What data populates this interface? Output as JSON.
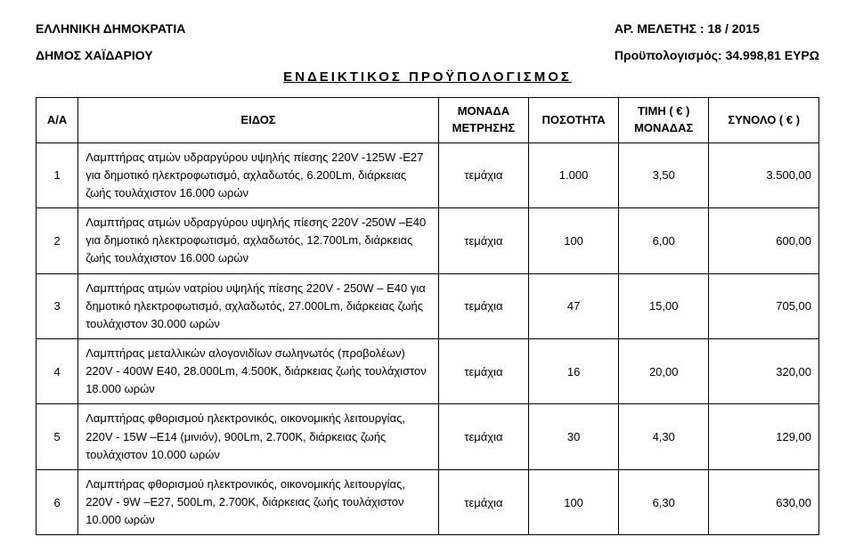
{
  "header": {
    "left1": "ΕΛΛΗΝΙΚΗ ΔΗΜΟΚΡΑΤΙΑ",
    "left2": "ΔΗΜΟΣ ΧΑΪΔΑΡΙΟΥ",
    "right1": "ΑΡ. ΜΕΛΕΤΗΣ : 18 / 2015",
    "right2": "Προϋπολογισμός: 34.998,81 ΕΥΡΩ"
  },
  "title": "ΕΝΔΕΙΚΤΙΚΟΣ ΠΡΟΫΠΟΛΟΓΙΣΜΟΣ",
  "columns": {
    "aa": "Α/Α",
    "eidos": "ΕΙΔΟΣ",
    "monada_l1": "ΜΟΝΑΔΑ",
    "monada_l2": "ΜΕΤΡΗΣΗΣ",
    "posotita": "ΠΟΣΟΤΗΤΑ",
    "timi_l1": "ΤΙΜΗ    ( € )",
    "timi_l2": "ΜΟΝΑΔΑΣ",
    "synolo": "ΣΥΝΟΛΟ ( € )"
  },
  "rows": [
    {
      "aa": "1",
      "desc": "Λαμπτήρας ατμών υδραργύρου υψηλής πίεσης 220V -125W -Ε27 για δημοτικό ηλεκτροφωτισμό, αχλαδωτός, 6.200Lm, διάρκειας ζωής τουλάχιστον 16.000 ωρών",
      "mon": "τεμάχια",
      "pos": "1.000",
      "timi": "3,50",
      "syn": "3.500,00"
    },
    {
      "aa": "2",
      "desc": "Λαμπτήρας ατμών υδραργύρου υψηλής πίεσης 220V -250W –Ε40 για δημοτικό ηλεκτροφωτισμό, αχλαδωτός, 12.700Lm,  διάρκειας ζωής τουλάχιστον 16.000 ωρών",
      "mon": "τεμάχια",
      "pos": "100",
      "timi": "6,00",
      "syn": "600,00"
    },
    {
      "aa": "3",
      "desc": "Λαμπτήρας ατμών νατρίου υψηλής πίεσης 220V - 250W – Ε40 για δημοτικό ηλεκτροφωτισμό, αχλαδωτός, 27.000Lm, διάρκειας ζωής τουλάχιστον 30.000 ωρών",
      "mon": "τεμάχια",
      "pos": "47",
      "timi": "15,00",
      "syn": "705,00"
    },
    {
      "aa": "4",
      "desc": "Λαμπτήρας μεταλλικών αλογονιδίων σωληνωτός (προβολέων) 220V - 400W  Ε40, 28.000Lm, 4.500Κ, διάρκειας ζωής τουλάχιστον 18.000 ωρών",
      "mon": "τεμάχια",
      "pos": "16",
      "timi": "20,00",
      "syn": "320,00"
    },
    {
      "aa": "5",
      "desc": "Λαμπτήρας φθορισμού ηλεκτρονικός, οικονομικής λειτουργίας, 220V - 15W –Ε14 (μινιόν), 900Lm, 2.700Κ, διάρκειας ζωής τουλάχιστον 10.000 ωρών",
      "mon": "τεμάχια",
      "pos": "30",
      "timi": "4,30",
      "syn": "129,00"
    },
    {
      "aa": "6",
      "desc": "Λαμπτήρας φθορισμού ηλεκτρονικός, οικονομικής λειτουργίας, 220V - 9W –Ε27, 500Lm,  2.700Κ, διάρκειας ζωής τουλάχιστον 10.000 ωρών",
      "mon": "τεμάχια",
      "pos": "100",
      "timi": "6,30",
      "syn": "630,00"
    }
  ]
}
